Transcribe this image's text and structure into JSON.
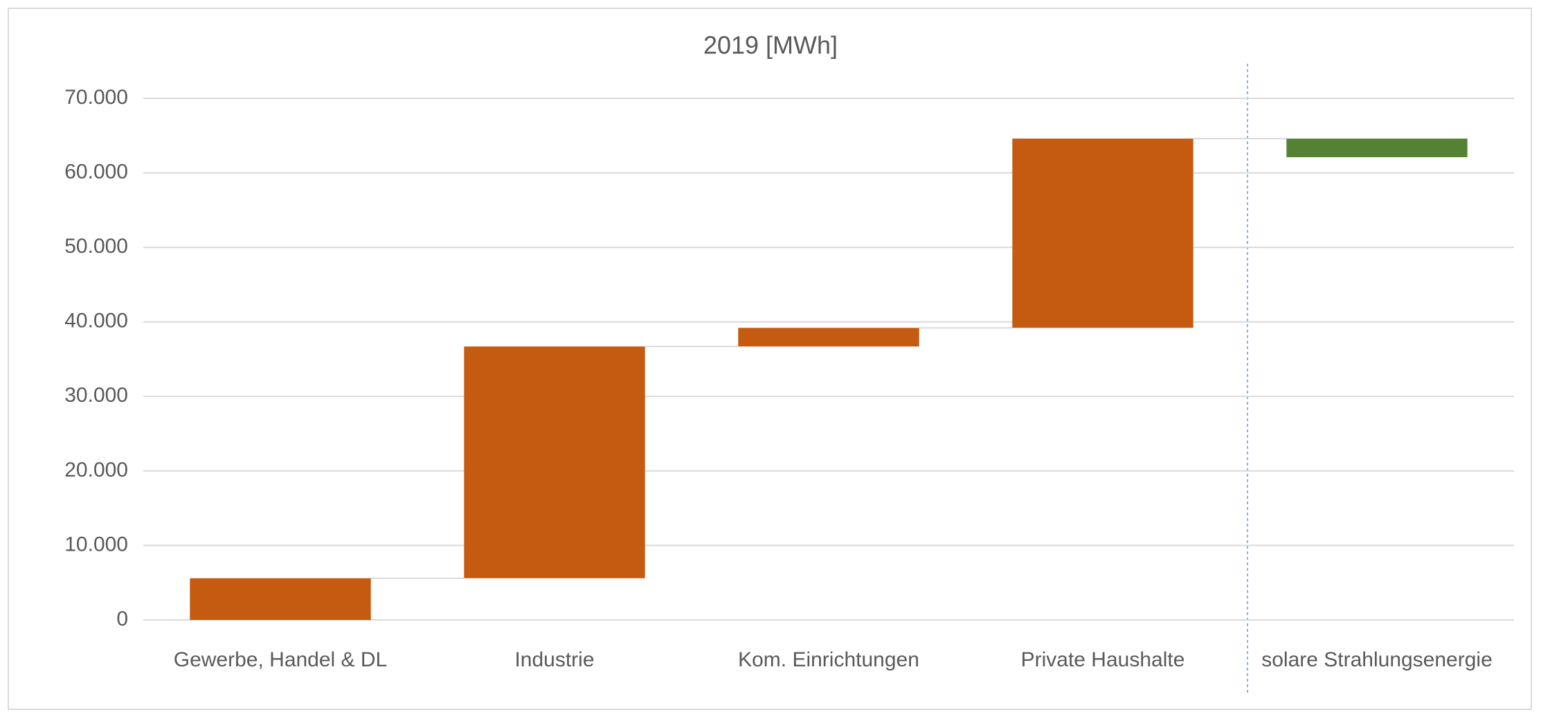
{
  "chart_data": {
    "type": "waterfall",
    "title": "2019 [MWh]",
    "categories": [
      "Gewerbe, Handel & DL",
      "Industrie",
      "Kom. Einrichtungen",
      "Private Haushalte",
      "solare Strahlungsenergie"
    ],
    "values": [
      5600,
      31100,
      2500,
      25400,
      -2500
    ],
    "colors": [
      "#c55a11",
      "#c55a11",
      "#c55a11",
      "#c55a11",
      "#548235"
    ],
    "ylim": [
      0,
      70000
    ],
    "yticks": [
      0,
      {
        "value": 10000,
        "label": "10.000"
      },
      {
        "value": 20000,
        "label": "20.000"
      },
      {
        "value": 30000,
        "label": "30.000"
      },
      {
        "value": 40000,
        "label": "40.000"
      },
      {
        "value": 50000,
        "label": "50.000"
      },
      {
        "value": 60000,
        "label": "60.000"
      },
      {
        "value": 70000,
        "label": "70.000"
      }
    ],
    "grid": true
  }
}
